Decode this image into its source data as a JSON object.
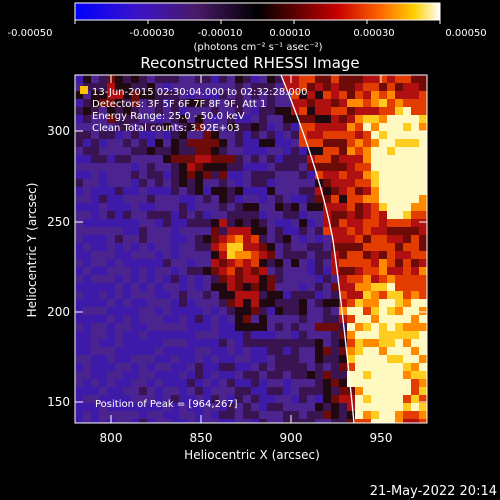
{
  "colorbar": {
    "ticks": [
      "-0.00050",
      "-0.00030",
      "-0.00010",
      "0.00010",
      "0.00030",
      "0.00050"
    ],
    "unit": "(photons cm⁻² s⁻¹ asec⁻²)"
  },
  "plot": {
    "title": "Reconstructed RHESSI Image",
    "info": [
      "13-Jun-2015 02:30:04.000 to 02:32:28.000",
      "Detectors: 3F 5F 6F 7F 8F 9F, Att 1",
      "Energy Range: 25.0 - 50.0 keV",
      "Clean    Total counts: 3.92E+03"
    ],
    "peak_text": "Position of Peak = [964,267]",
    "xlabel": "Heliocentric X (arcsec)",
    "ylabel": "Heliocentric Y (arcsec)",
    "x_ticks": [
      "800",
      "850",
      "900",
      "950"
    ],
    "y_ticks": [
      "150",
      "200",
      "250",
      "300"
    ]
  },
  "footer": {
    "date": "21-May-2022 20:14"
  }
}
